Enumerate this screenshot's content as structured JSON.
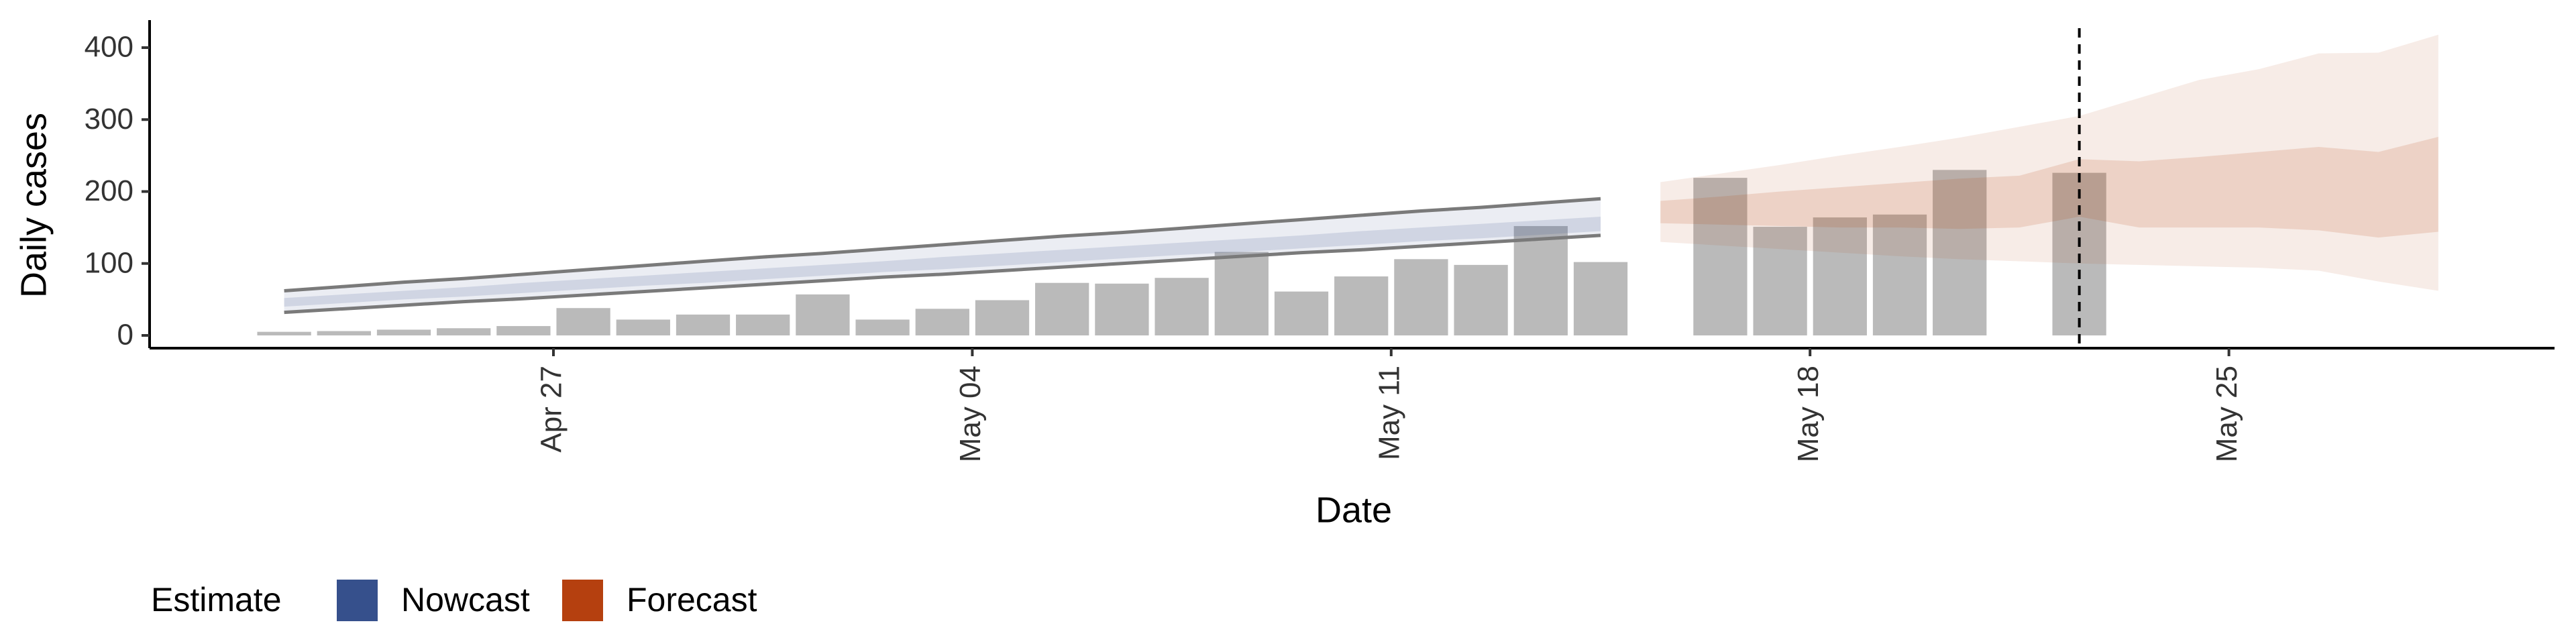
{
  "chart_data": {
    "type": "bar",
    "x_label": "Date",
    "y_label": "Daily cases",
    "legend_title": "Estimate",
    "categories": [
      null,
      null,
      null,
      null,
      "Apr 27",
      null,
      null,
      null,
      null,
      null,
      null,
      "May 04",
      null,
      null,
      null,
      null,
      null,
      null,
      "May 11",
      null,
      null,
      null,
      null,
      null,
      null,
      "May 18",
      null,
      null,
      null,
      null,
      null,
      null,
      "May 25",
      null,
      null,
      null,
      null
    ],
    "values": [
      5,
      6,
      8,
      10,
      13,
      38,
      22,
      29,
      29,
      57,
      22,
      37,
      49,
      73,
      72,
      80,
      116,
      61,
      82,
      106,
      98,
      152,
      102,
      null,
      219,
      151,
      164,
      168,
      230,
      null,
      226,
      null,
      null,
      null,
      null,
      null,
      null
    ],
    "color": "#bababa",
    "ylim": [
      0,
      400
    ],
    "yticks": [
      0,
      100,
      200,
      300,
      400
    ],
    "series": [
      {
        "name": "Nowcast",
        "color": "#36508c",
        "upper": [
          62,
          68,
          74,
          79,
          85,
          91,
          97,
          103,
          109,
          114,
          120,
          126,
          132,
          138,
          143,
          149,
          155,
          161,
          167,
          173,
          178,
          184,
          190,
          null,
          null,
          null,
          null,
          null,
          null,
          null,
          null,
          null,
          null,
          null,
          null,
          null,
          null
        ],
        "lower": [
          32,
          37,
          42,
          47,
          51,
          56,
          61,
          66,
          71,
          76,
          81,
          85,
          90,
          95,
          100,
          105,
          110,
          115,
          119,
          124,
          129,
          134,
          139,
          null,
          null,
          null,
          null,
          null,
          null,
          null,
          null,
          null,
          null,
          null,
          null,
          null,
          null
        ],
        "inner_upper": [
          52,
          57,
          62,
          67,
          73,
          78,
          83,
          88,
          93,
          98,
          103,
          109,
          114,
          119,
          124,
          129,
          134,
          139,
          145,
          150,
          155,
          160,
          165,
          null,
          null,
          null,
          null,
          null,
          null,
          null,
          null,
          null,
          null,
          null,
          null,
          null,
          null
        ],
        "inner_lower": [
          40,
          45,
          50,
          54,
          59,
          64,
          69,
          73,
          78,
          83,
          88,
          92,
          97,
          102,
          107,
          112,
          116,
          121,
          126,
          131,
          135,
          140,
          145,
          null,
          null,
          null,
          null,
          null,
          null,
          null,
          null,
          null,
          null,
          null,
          null,
          null,
          null
        ]
      },
      {
        "name": "Forecast",
        "color": "#b5400f",
        "upper": [
          null,
          null,
          null,
          null,
          null,
          null,
          null,
          null,
          null,
          null,
          null,
          null,
          null,
          null,
          null,
          null,
          null,
          null,
          null,
          null,
          null,
          null,
          null,
          213,
          225,
          237,
          250,
          262,
          275,
          290,
          305,
          330,
          355,
          370,
          392,
          393,
          418
        ],
        "lower": [
          null,
          null,
          null,
          null,
          null,
          null,
          null,
          null,
          null,
          null,
          null,
          null,
          null,
          null,
          null,
          null,
          null,
          null,
          null,
          null,
          null,
          null,
          null,
          130,
          125,
          120,
          115,
          110,
          106,
          103,
          100,
          98,
          96,
          94,
          90,
          75,
          62
        ],
        "inner_upper": [
          null,
          null,
          null,
          null,
          null,
          null,
          null,
          null,
          null,
          null,
          null,
          null,
          null,
          null,
          null,
          null,
          null,
          null,
          null,
          null,
          null,
          null,
          null,
          187,
          193,
          200,
          206,
          212,
          218,
          222,
          245,
          242,
          248,
          255,
          262,
          255,
          276
        ],
        "inner_lower": [
          null,
          null,
          null,
          null,
          null,
          null,
          null,
          null,
          null,
          null,
          null,
          null,
          null,
          null,
          null,
          null,
          null,
          null,
          null,
          null,
          null,
          null,
          null,
          156,
          154,
          152,
          150,
          150,
          148,
          150,
          165,
          150,
          150,
          150,
          146,
          136,
          144
        ]
      }
    ]
  }
}
